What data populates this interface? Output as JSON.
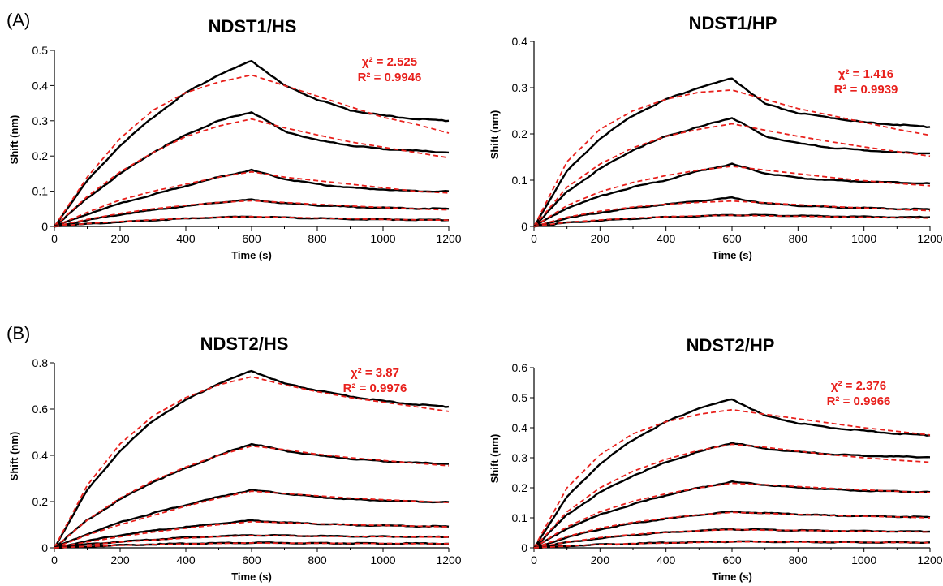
{
  "panel_labels": [
    "(A)",
    "(B)"
  ],
  "colors": {
    "data": "#000000",
    "fit": "#e8201c"
  },
  "chart_data": [
    {
      "type": "line",
      "title": "NDST1/HS",
      "xlabel": "Time (s)",
      "ylabel": "Shift (nm)",
      "xlim": [
        0,
        1200
      ],
      "ylim": [
        0,
        0.5
      ],
      "xticks": [
        "0",
        "200",
        "400",
        "600",
        "800",
        "1000",
        "1200"
      ],
      "yticks": [
        "0",
        "0.1",
        "0.2",
        "0.3",
        "0.4",
        "0.5"
      ],
      "stats": [
        "χ² = 2.525",
        "R² = 0.9946"
      ],
      "x": [
        0,
        100,
        200,
        300,
        400,
        500,
        600,
        700,
        800,
        900,
        1000,
        1100,
        1200
      ],
      "series": [
        {
          "kind": "data",
          "values": [
            0,
            0.13,
            0.23,
            0.31,
            0.38,
            0.43,
            0.47,
            0.4,
            0.36,
            0.33,
            0.315,
            0.305,
            0.3
          ]
        },
        {
          "kind": "fit",
          "values": [
            0,
            0.14,
            0.25,
            0.33,
            0.38,
            0.41,
            0.43,
            0.4,
            0.37,
            0.34,
            0.31,
            0.29,
            0.265
          ]
        },
        {
          "kind": "data",
          "values": [
            0,
            0.08,
            0.15,
            0.21,
            0.26,
            0.3,
            0.325,
            0.27,
            0.245,
            0.23,
            0.22,
            0.215,
            0.21
          ]
        },
        {
          "kind": "fit",
          "values": [
            0,
            0.085,
            0.155,
            0.21,
            0.255,
            0.285,
            0.305,
            0.28,
            0.26,
            0.24,
            0.225,
            0.21,
            0.195
          ]
        },
        {
          "kind": "data",
          "values": [
            0,
            0.035,
            0.065,
            0.09,
            0.115,
            0.14,
            0.16,
            0.135,
            0.12,
            0.11,
            0.105,
            0.1,
            0.1
          ]
        },
        {
          "kind": "fit",
          "values": [
            0,
            0.04,
            0.075,
            0.1,
            0.12,
            0.14,
            0.155,
            0.14,
            0.13,
            0.12,
            0.11,
            0.1,
            0.095
          ]
        },
        {
          "kind": "data",
          "values": [
            0,
            0.018,
            0.034,
            0.047,
            0.058,
            0.068,
            0.076,
            0.066,
            0.06,
            0.056,
            0.053,
            0.051,
            0.05
          ]
        },
        {
          "kind": "fit",
          "values": [
            0,
            0.02,
            0.037,
            0.05,
            0.06,
            0.068,
            0.073,
            0.068,
            0.063,
            0.058,
            0.054,
            0.05,
            0.047
          ]
        },
        {
          "kind": "data",
          "values": [
            0,
            0.007,
            0.013,
            0.018,
            0.022,
            0.026,
            0.028,
            0.025,
            0.023,
            0.021,
            0.02,
            0.019,
            0.018
          ]
        },
        {
          "kind": "fit",
          "values": [
            0,
            0.008,
            0.014,
            0.019,
            0.023,
            0.026,
            0.028,
            0.026,
            0.024,
            0.022,
            0.02,
            0.019,
            0.018
          ]
        }
      ]
    },
    {
      "type": "line",
      "title": "NDST1/HP",
      "xlabel": "Time (s)",
      "ylabel": "Shift (nm)",
      "xlim": [
        0,
        1200
      ],
      "ylim": [
        0,
        0.4
      ],
      "xticks": [
        "0",
        "200",
        "400",
        "600",
        "800",
        "1000",
        "1200"
      ],
      "yticks": [
        "0",
        "0.1",
        "0.2",
        "0.3",
        "0.4"
      ],
      "stats": [
        "χ² = 1.416",
        "R² = 0.9939"
      ],
      "x": [
        0,
        100,
        200,
        300,
        400,
        500,
        600,
        700,
        800,
        900,
        1000,
        1100,
        1200
      ],
      "series": [
        {
          "kind": "data",
          "values": [
            0,
            0.12,
            0.19,
            0.24,
            0.275,
            0.3,
            0.32,
            0.265,
            0.245,
            0.235,
            0.225,
            0.22,
            0.215
          ]
        },
        {
          "kind": "fit",
          "values": [
            0,
            0.14,
            0.21,
            0.25,
            0.275,
            0.29,
            0.295,
            0.275,
            0.255,
            0.24,
            0.225,
            0.21,
            0.197
          ]
        },
        {
          "kind": "data",
          "values": [
            0,
            0.075,
            0.125,
            0.165,
            0.195,
            0.215,
            0.235,
            0.195,
            0.18,
            0.17,
            0.165,
            0.16,
            0.158
          ]
        },
        {
          "kind": "fit",
          "values": [
            0,
            0.085,
            0.135,
            0.17,
            0.195,
            0.21,
            0.222,
            0.208,
            0.195,
            0.183,
            0.172,
            0.162,
            0.152
          ]
        },
        {
          "kind": "data",
          "values": [
            0,
            0.04,
            0.065,
            0.085,
            0.1,
            0.12,
            0.135,
            0.115,
            0.105,
            0.1,
            0.097,
            0.095,
            0.093
          ]
        },
        {
          "kind": "fit",
          "values": [
            0,
            0.045,
            0.075,
            0.095,
            0.11,
            0.122,
            0.13,
            0.122,
            0.114,
            0.106,
            0.099,
            0.093,
            0.088
          ]
        },
        {
          "kind": "data",
          "values": [
            0,
            0.018,
            0.03,
            0.04,
            0.048,
            0.055,
            0.062,
            0.05,
            0.045,
            0.042,
            0.04,
            0.038,
            0.037
          ]
        },
        {
          "kind": "fit",
          "values": [
            0,
            0.02,
            0.033,
            0.042,
            0.048,
            0.052,
            0.055,
            0.051,
            0.047,
            0.043,
            0.04,
            0.037,
            0.034
          ]
        },
        {
          "kind": "data",
          "values": [
            0,
            0.008,
            0.013,
            0.017,
            0.02,
            0.022,
            0.025,
            0.024,
            0.023,
            0.022,
            0.021,
            0.02,
            0.02
          ]
        },
        {
          "kind": "fit",
          "values": [
            0,
            0.009,
            0.014,
            0.018,
            0.021,
            0.023,
            0.024,
            0.023,
            0.022,
            0.021,
            0.02,
            0.019,
            0.018
          ]
        }
      ]
    },
    {
      "type": "line",
      "title": "NDST2/HS",
      "xlabel": "Time (s)",
      "ylabel": "Shift (nm)",
      "xlim": [
        0,
        1200
      ],
      "ylim": [
        0,
        0.8
      ],
      "xticks": [
        "0",
        "200",
        "400",
        "600",
        "800",
        "1000",
        "1200"
      ],
      "yticks": [
        "0",
        "0.2",
        "0.4",
        "0.6",
        "0.8"
      ],
      "stats": [
        "χ² = 3.87",
        "R² = 0.9976"
      ],
      "x": [
        0,
        100,
        200,
        300,
        400,
        500,
        600,
        700,
        800,
        900,
        1000,
        1100,
        1200
      ],
      "series": [
        {
          "kind": "data",
          "values": [
            0,
            0.25,
            0.42,
            0.55,
            0.64,
            0.71,
            0.765,
            0.71,
            0.68,
            0.655,
            0.635,
            0.62,
            0.61
          ]
        },
        {
          "kind": "fit",
          "values": [
            0,
            0.27,
            0.45,
            0.57,
            0.65,
            0.705,
            0.74,
            0.705,
            0.675,
            0.65,
            0.63,
            0.61,
            0.59
          ]
        },
        {
          "kind": "data",
          "values": [
            0,
            0.12,
            0.21,
            0.285,
            0.345,
            0.4,
            0.45,
            0.42,
            0.4,
            0.385,
            0.375,
            0.368,
            0.363
          ]
        },
        {
          "kind": "fit",
          "values": [
            0,
            0.12,
            0.215,
            0.29,
            0.35,
            0.4,
            0.44,
            0.425,
            0.405,
            0.39,
            0.378,
            0.366,
            0.355
          ]
        },
        {
          "kind": "data",
          "values": [
            0,
            0.06,
            0.11,
            0.15,
            0.185,
            0.22,
            0.25,
            0.235,
            0.22,
            0.21,
            0.205,
            0.2,
            0.198
          ]
        },
        {
          "kind": "fit",
          "values": [
            0,
            0.055,
            0.1,
            0.14,
            0.18,
            0.215,
            0.245,
            0.235,
            0.225,
            0.215,
            0.208,
            0.202,
            0.196
          ]
        },
        {
          "kind": "data",
          "values": [
            0,
            0.03,
            0.055,
            0.075,
            0.09,
            0.105,
            0.118,
            0.11,
            0.104,
            0.099,
            0.096,
            0.094,
            0.092
          ]
        },
        {
          "kind": "fit",
          "values": [
            0,
            0.025,
            0.048,
            0.068,
            0.085,
            0.1,
            0.113,
            0.109,
            0.104,
            0.1,
            0.097,
            0.094,
            0.091
          ]
        },
        {
          "kind": "data",
          "values": [
            0,
            0.015,
            0.027,
            0.036,
            0.044,
            0.05,
            0.055,
            0.053,
            0.051,
            0.05,
            0.049,
            0.048,
            0.047
          ]
        },
        {
          "kind": "fit",
          "values": [
            0,
            0.013,
            0.025,
            0.034,
            0.042,
            0.048,
            0.053,
            0.052,
            0.05,
            0.049,
            0.048,
            0.047,
            0.046
          ]
        },
        {
          "kind": "data",
          "values": [
            0,
            0.006,
            0.011,
            0.015,
            0.018,
            0.02,
            0.022,
            0.021,
            0.02,
            0.02,
            0.019,
            0.019,
            0.018
          ]
        },
        {
          "kind": "fit",
          "values": [
            0,
            0.006,
            0.011,
            0.014,
            0.017,
            0.019,
            0.021,
            0.02,
            0.02,
            0.019,
            0.019,
            0.018,
            0.018
          ]
        }
      ]
    },
    {
      "type": "line",
      "title": "NDST2/HP",
      "xlabel": "Time (s)",
      "ylabel": "Shift (nm)",
      "xlim": [
        0,
        1200
      ],
      "ylim": [
        0,
        0.6
      ],
      "xticks": [
        "0",
        "200",
        "400",
        "600",
        "800",
        "1000",
        "1200"
      ],
      "yticks": [
        "0",
        "0.1",
        "0.2",
        "0.3",
        "0.4",
        "0.5",
        "0.6"
      ],
      "stats": [
        "χ² = 2.376",
        "R² = 0.9966"
      ],
      "x": [
        0,
        100,
        200,
        300,
        400,
        500,
        600,
        700,
        800,
        900,
        1000,
        1100,
        1200
      ],
      "series": [
        {
          "kind": "data",
          "values": [
            0,
            0.17,
            0.28,
            0.36,
            0.42,
            0.465,
            0.495,
            0.44,
            0.415,
            0.4,
            0.39,
            0.38,
            0.375
          ]
        },
        {
          "kind": "fit",
          "values": [
            0,
            0.2,
            0.31,
            0.38,
            0.42,
            0.445,
            0.46,
            0.445,
            0.43,
            0.415,
            0.4,
            0.388,
            0.376
          ]
        },
        {
          "kind": "data",
          "values": [
            0,
            0.11,
            0.185,
            0.24,
            0.285,
            0.32,
            0.35,
            0.33,
            0.32,
            0.312,
            0.307,
            0.304,
            0.302
          ]
        },
        {
          "kind": "fit",
          "values": [
            0,
            0.12,
            0.2,
            0.255,
            0.295,
            0.325,
            0.345,
            0.335,
            0.322,
            0.31,
            0.3,
            0.292,
            0.285
          ]
        },
        {
          "kind": "data",
          "values": [
            0,
            0.065,
            0.11,
            0.145,
            0.175,
            0.2,
            0.22,
            0.21,
            0.2,
            0.195,
            0.19,
            0.188,
            0.186
          ]
        },
        {
          "kind": "fit",
          "values": [
            0,
            0.07,
            0.12,
            0.155,
            0.18,
            0.2,
            0.215,
            0.21,
            0.204,
            0.198,
            0.193,
            0.188,
            0.184
          ]
        },
        {
          "kind": "data",
          "values": [
            0,
            0.035,
            0.062,
            0.082,
            0.097,
            0.11,
            0.12,
            0.116,
            0.112,
            0.108,
            0.106,
            0.104,
            0.102
          ]
        },
        {
          "kind": "fit",
          "values": [
            0,
            0.038,
            0.066,
            0.085,
            0.099,
            0.11,
            0.118,
            0.115,
            0.111,
            0.108,
            0.105,
            0.103,
            0.1
          ]
        },
        {
          "kind": "data",
          "values": [
            0,
            0.018,
            0.032,
            0.043,
            0.051,
            0.057,
            0.062,
            0.06,
            0.058,
            0.057,
            0.056,
            0.055,
            0.054
          ]
        },
        {
          "kind": "fit",
          "values": [
            0,
            0.019,
            0.034,
            0.045,
            0.052,
            0.057,
            0.061,
            0.059,
            0.058,
            0.057,
            0.055,
            0.054,
            0.053
          ]
        },
        {
          "kind": "data",
          "values": [
            0,
            0.006,
            0.011,
            0.014,
            0.017,
            0.019,
            0.021,
            0.02,
            0.02,
            0.019,
            0.019,
            0.018,
            0.018
          ]
        },
        {
          "kind": "fit",
          "values": [
            0,
            0.006,
            0.011,
            0.014,
            0.016,
            0.018,
            0.02,
            0.02,
            0.019,
            0.019,
            0.018,
            0.018,
            0.017
          ]
        }
      ]
    }
  ]
}
